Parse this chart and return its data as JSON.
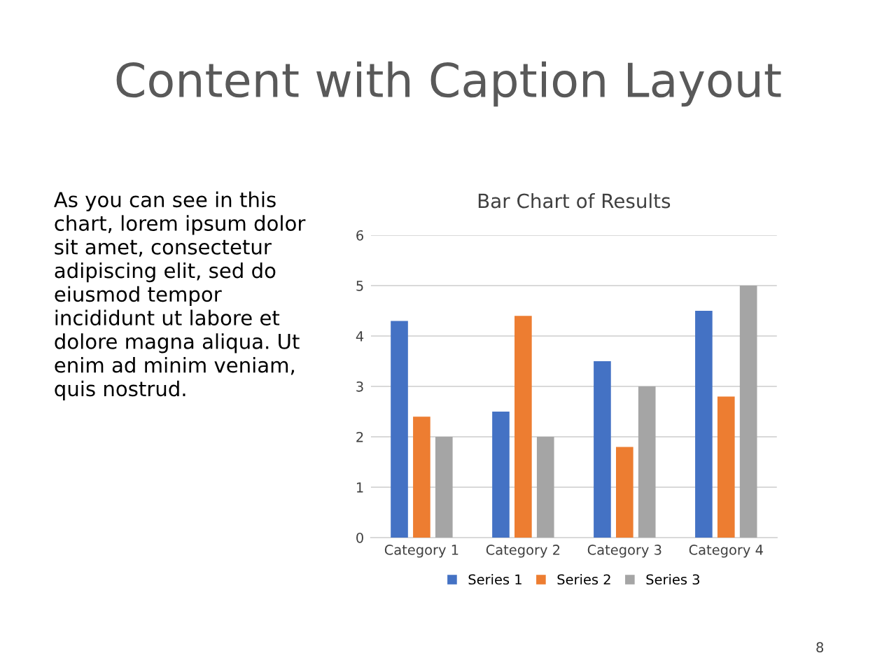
{
  "chart_data": {
    "type": "bar",
    "title": "Bar Chart of Results",
    "categories": [
      "Category 1",
      "Category 2",
      "Category 3",
      "Category 4"
    ],
    "series": [
      {
        "name": "Series 1",
        "color": "#4472c4",
        "values": [
          4.3,
          2.5,
          3.5,
          4.5
        ]
      },
      {
        "name": "Series 2",
        "color": "#ed7d31",
        "values": [
          2.4,
          4.4,
          1.8,
          2.8
        ]
      },
      {
        "name": "Series 3",
        "color": "#a5a5a5",
        "values": [
          2,
          2,
          3,
          5
        ]
      }
    ],
    "ylim": [
      0,
      6
    ],
    "yticks": [
      0,
      1,
      2,
      3,
      4,
      5,
      6
    ],
    "grid": "y",
    "legend": "bottom",
    "annotations": [
      "Content with Caption Layout",
      "As you can see in this\nchart, lorem ipsum dolor\nsit amet, consectetur\nadipiscing elit, sed do\neiusmod tempor\nincididunt ut labore et\ndolore magna aliqua. Ut\nenim ad minim veniam,\nquis nostrud.",
      "8"
    ]
  }
}
